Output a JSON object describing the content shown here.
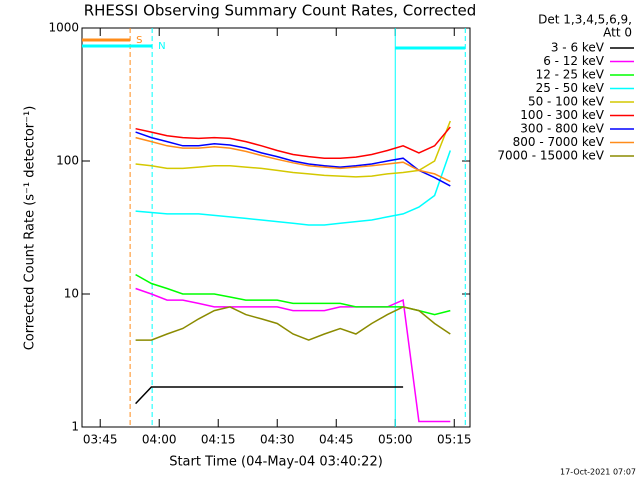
{
  "chart_data": {
    "type": "line",
    "title": "RHESSI Observing Summary Count Rates, Corrected",
    "xlabel": "Start Time (04-May-04 03:40:22)",
    "ylabel": "Corrected Count Rate (s⁻¹ detector⁻¹)",
    "legend_title": [
      "Det 1,3,4,5,6,9,",
      "Att 0"
    ],
    "footer": "17-Oct-2021 07:07",
    "log_y": true,
    "xlim": [
      220.37,
      319
    ],
    "ylim": [
      1,
      1000
    ],
    "xticks": [
      {
        "value": 225,
        "label": "03:45"
      },
      {
        "value": 240,
        "label": "04:00"
      },
      {
        "value": 255,
        "label": "04:15"
      },
      {
        "value": 270,
        "label": "04:30"
      },
      {
        "value": 285,
        "label": "04:45"
      },
      {
        "value": 300,
        "label": "05:00"
      },
      {
        "value": 315,
        "label": "05:15"
      }
    ],
    "yticks": [
      1,
      10,
      100,
      1000
    ],
    "flags": [
      {
        "label": "S",
        "color": "#ff8c1a",
        "x": [
          220.37,
          232.6
        ]
      },
      {
        "label": "N",
        "color": "#00ffff",
        "x": [
          220.37,
          238.2
        ]
      },
      {
        "color": "#00ffff",
        "x": [
          300.0,
          317.8
        ]
      }
    ],
    "x": [
      234,
      238,
      242,
      246,
      250,
      254,
      258,
      262,
      266,
      270,
      274,
      278,
      282,
      286,
      290,
      294,
      298,
      302,
      306,
      310,
      314
    ],
    "series": [
      {
        "name": "3 - 6 keV",
        "color": "#000000",
        "values": [
          1.5,
          2,
          2,
          2,
          2,
          2,
          2,
          2,
          2,
          2,
          2,
          2,
          2,
          2,
          2,
          2,
          2,
          2,
          null,
          null,
          null
        ]
      },
      {
        "name": "6 - 12 keV",
        "color": "#ff00ff",
        "values": [
          11,
          10,
          9,
          9,
          8.5,
          8,
          8,
          8,
          8,
          8,
          7.5,
          7.5,
          7.5,
          8,
          8,
          8,
          8,
          9,
          1.1,
          1.1,
          1.1
        ]
      },
      {
        "name": "12 - 25 keV",
        "color": "#00ff00",
        "values": [
          14,
          12,
          11,
          10,
          10,
          10,
          9.5,
          9,
          9,
          9,
          8.5,
          8.5,
          8.5,
          8.5,
          8,
          8,
          8,
          8,
          7.5,
          7,
          7.5
        ]
      },
      {
        "name": "25 - 50 keV",
        "color": "#00ffff",
        "values": [
          42,
          41,
          40,
          40,
          40,
          39,
          38,
          37,
          36,
          35,
          34,
          33,
          33,
          34,
          35,
          36,
          38,
          40,
          45,
          55,
          120
        ]
      },
      {
        "name": "50 - 100 keV",
        "color": "#d4c800",
        "values": [
          95,
          92,
          88,
          88,
          90,
          92,
          92,
          90,
          88,
          85,
          82,
          80,
          78,
          77,
          76,
          77,
          80,
          82,
          85,
          100,
          200
        ]
      },
      {
        "name": "100 - 300 keV",
        "color": "#ff0000",
        "values": [
          175,
          165,
          155,
          150,
          148,
          150,
          148,
          140,
          130,
          120,
          112,
          108,
          105,
          105,
          107,
          112,
          120,
          130,
          115,
          130,
          180
        ]
      },
      {
        "name": "300 - 800 keV",
        "color": "#0000ff",
        "values": [
          165,
          150,
          140,
          130,
          130,
          135,
          132,
          125,
          115,
          108,
          100,
          95,
          92,
          90,
          92,
          95,
          100,
          105,
          85,
          75,
          65
        ]
      },
      {
        "name": "800 - 7000 keV",
        "color": "#ff8c1a",
        "values": [
          150,
          140,
          130,
          125,
          125,
          128,
          125,
          118,
          110,
          103,
          97,
          92,
          90,
          88,
          90,
          92,
          95,
          98,
          85,
          80,
          70
        ]
      },
      {
        "name": "7000 - 15000 keV",
        "color": "#8b8b00",
        "values": [
          4.5,
          4.5,
          5,
          5.5,
          6.5,
          7.5,
          8,
          7,
          6.5,
          6,
          5,
          4.5,
          5,
          5.5,
          5,
          6,
          7,
          8,
          7.5,
          6,
          5
        ]
      }
    ]
  }
}
